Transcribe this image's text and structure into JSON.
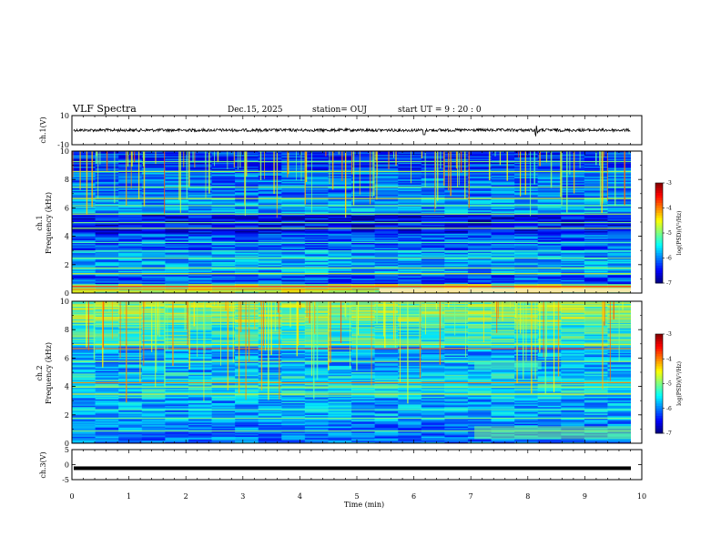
{
  "header": {
    "title": "VLF Spectra",
    "date": "Dec.15, 2025",
    "station": "station= OUJ",
    "start": "start  UT =   9 : 20 : 0"
  },
  "chart_data": [
    {
      "id": "ch1_waveform",
      "type": "line",
      "ylabel": "ch.1(V)",
      "ylim": [
        -10,
        10
      ],
      "yticks": [
        "10",
        "-10"
      ],
      "xlim": [
        0,
        10
      ],
      "description_values": {
        "baseline_mean": 0.0,
        "typical_amplitude": 1.0,
        "spikes_at_min": [
          8.25,
          8.3
        ]
      }
    },
    {
      "id": "ch1_spectrogram",
      "type": "heatmap",
      "ylabel": "ch.1\nFrequency  (kHz)",
      "ylim": [
        0,
        10
      ],
      "yticks": [
        "0",
        "2",
        "4",
        "6",
        "8",
        "10"
      ],
      "xlim": [
        0,
        9.8
      ],
      "colorbar": {
        "label": "log(PSD)(V²/Hz)",
        "ticks": [
          "-3",
          "-4",
          "-5",
          "-6",
          "-7"
        ],
        "range": [
          -7,
          -3
        ]
      }
    },
    {
      "id": "ch2_spectrogram",
      "type": "heatmap",
      "ylabel": "ch.2\nFrequency  (kHz)",
      "ylim": [
        0,
        10
      ],
      "yticks": [
        "0",
        "2",
        "4",
        "6",
        "8",
        "10"
      ],
      "xlim": [
        0,
        9.8
      ],
      "colorbar": {
        "label": "log(PSD)(V²/Hz)",
        "ticks": [
          "-3",
          "-4",
          "-5",
          "-6",
          "-7"
        ],
        "range": [
          -7,
          -3
        ]
      }
    },
    {
      "id": "ch3_voltage",
      "type": "line",
      "ylabel": "ch.3(V)",
      "ylim": [
        -5,
        5
      ],
      "yticks": [
        "5",
        "0",
        "-5"
      ],
      "xlim": [
        0,
        10
      ],
      "value": -1.2
    }
  ],
  "xaxis": {
    "label": "Time  (min)",
    "ticks": [
      "0",
      "1",
      "2",
      "3",
      "4",
      "5",
      "6",
      "7",
      "8",
      "9",
      "10"
    ]
  }
}
